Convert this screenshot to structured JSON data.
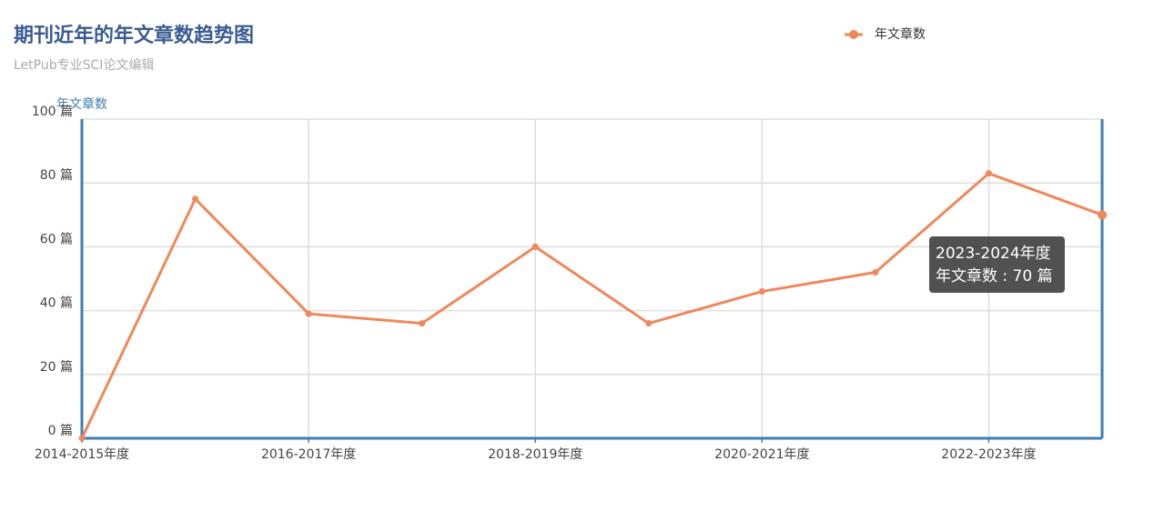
{
  "chart_data": {
    "type": "line",
    "title": "期刊近年的年文章数趋势图",
    "subtitle": "LetPub专业SCI论文编辑",
    "y_axis_label": "年文章数",
    "categories": [
      "2014-2015年度",
      null,
      "2016-2017年度",
      null,
      "2018-2019年度",
      null,
      "2020-2021年度",
      null,
      "2022-2023年度",
      null
    ],
    "series": [
      {
        "name": "年文章数",
        "color": "#f0875a",
        "values": [
          0,
          75,
          39,
          36,
          60,
          36,
          46,
          52,
          83,
          70
        ]
      }
    ],
    "ylim": [
      0,
      100
    ],
    "yticks": [
      {
        "value": 0,
        "label": "0 篇"
      },
      {
        "value": 20,
        "label": "20 篇"
      },
      {
        "value": 40,
        "label": "40 篇"
      },
      {
        "value": 60,
        "label": "60 篇"
      },
      {
        "value": 80,
        "label": "80 篇"
      },
      {
        "value": 100,
        "label": "100 篇"
      }
    ],
    "grid": true,
    "legend": "top-right",
    "tooltip": {
      "title": "2023-2024年度",
      "text": "年文章数 : 70 篇"
    }
  }
}
